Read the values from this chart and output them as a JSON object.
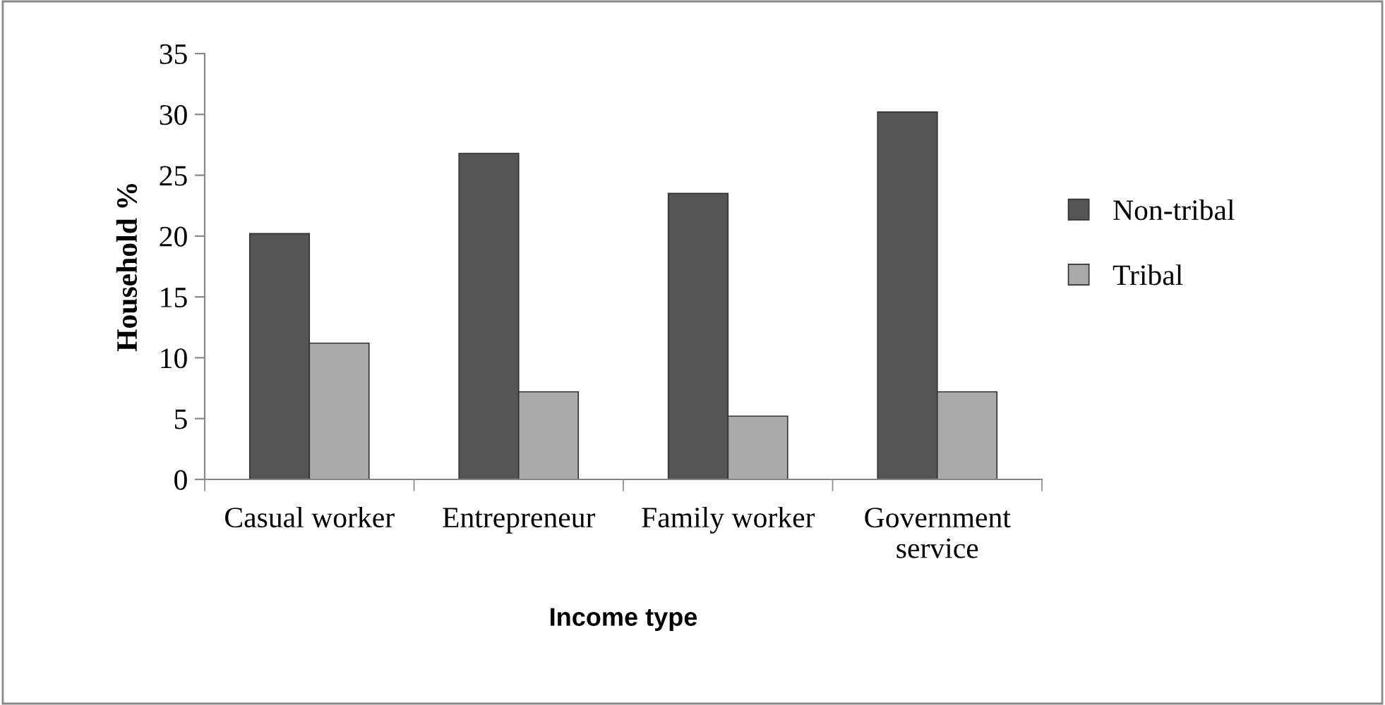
{
  "chart_data": {
    "type": "bar",
    "xlabel": "Income type",
    "ylabel": "Household %",
    "categories": [
      "Casual worker",
      "Entrepreneur",
      "Family worker",
      "Government\nservice"
    ],
    "series": [
      {
        "name": "Non-tribal",
        "color": "#555555",
        "values": [
          20.2,
          26.8,
          23.5,
          30.2
        ]
      },
      {
        "name": "Tribal",
        "color": "#aaaaaa",
        "values": [
          11.2,
          7.2,
          5.2,
          7.2
        ]
      }
    ],
    "ylim": [
      0,
      35
    ],
    "yticks": [
      0,
      5,
      10,
      15,
      20,
      25,
      30,
      35
    ],
    "grid": false,
    "legend": "right"
  }
}
